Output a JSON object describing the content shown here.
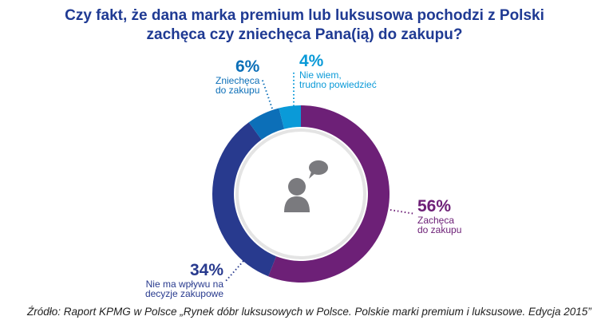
{
  "chart_data": {
    "type": "pie",
    "donut": true,
    "title": "Czy fakt, że dana marka premium lub luksusowa pochodzi z Polski zachęca czy zniechęca Pana(ią) do zakupu?",
    "title_lines": [
      "Czy fakt, że dana marka premium lub luksusowa pochodzi z Polski",
      "zachęca czy zniechęca Pana(ią) do zakupu?"
    ],
    "slices": [
      {
        "label": "Zachęca do zakupu",
        "label_lines": [
          "Zachęca",
          "do zakupu"
        ],
        "value": 56,
        "value_label": "56%",
        "color": "#6d2077"
      },
      {
        "label": "Nie ma wpływu na decyzje zakupowe",
        "label_lines": [
          "Nie ma wpływu na",
          "decyzje zakupowe"
        ],
        "value": 34,
        "value_label": "34%",
        "color": "#283a8e"
      },
      {
        "label": "Zniechęca do zakupu",
        "label_lines": [
          "Zniechęca",
          "do zakupu"
        ],
        "value": 6,
        "value_label": "6%",
        "color": "#0c6fb8"
      },
      {
        "label": "Nie wiem, trudno powiedzieć",
        "label_lines": [
          "Nie wiem,",
          "trudno powiedzieć"
        ],
        "value": 4,
        "value_label": "4%",
        "color": "#0a9ad8"
      }
    ],
    "center_icon": "person-speech-bubble-icon",
    "legend": "none"
  },
  "title_color": "#1f3a93",
  "source": "Źródło: Raport KPMG w Polsce „Rynek dóbr luksusowych w Polsce. Polskie marki premium i luksusowe. Edycja 2015”"
}
